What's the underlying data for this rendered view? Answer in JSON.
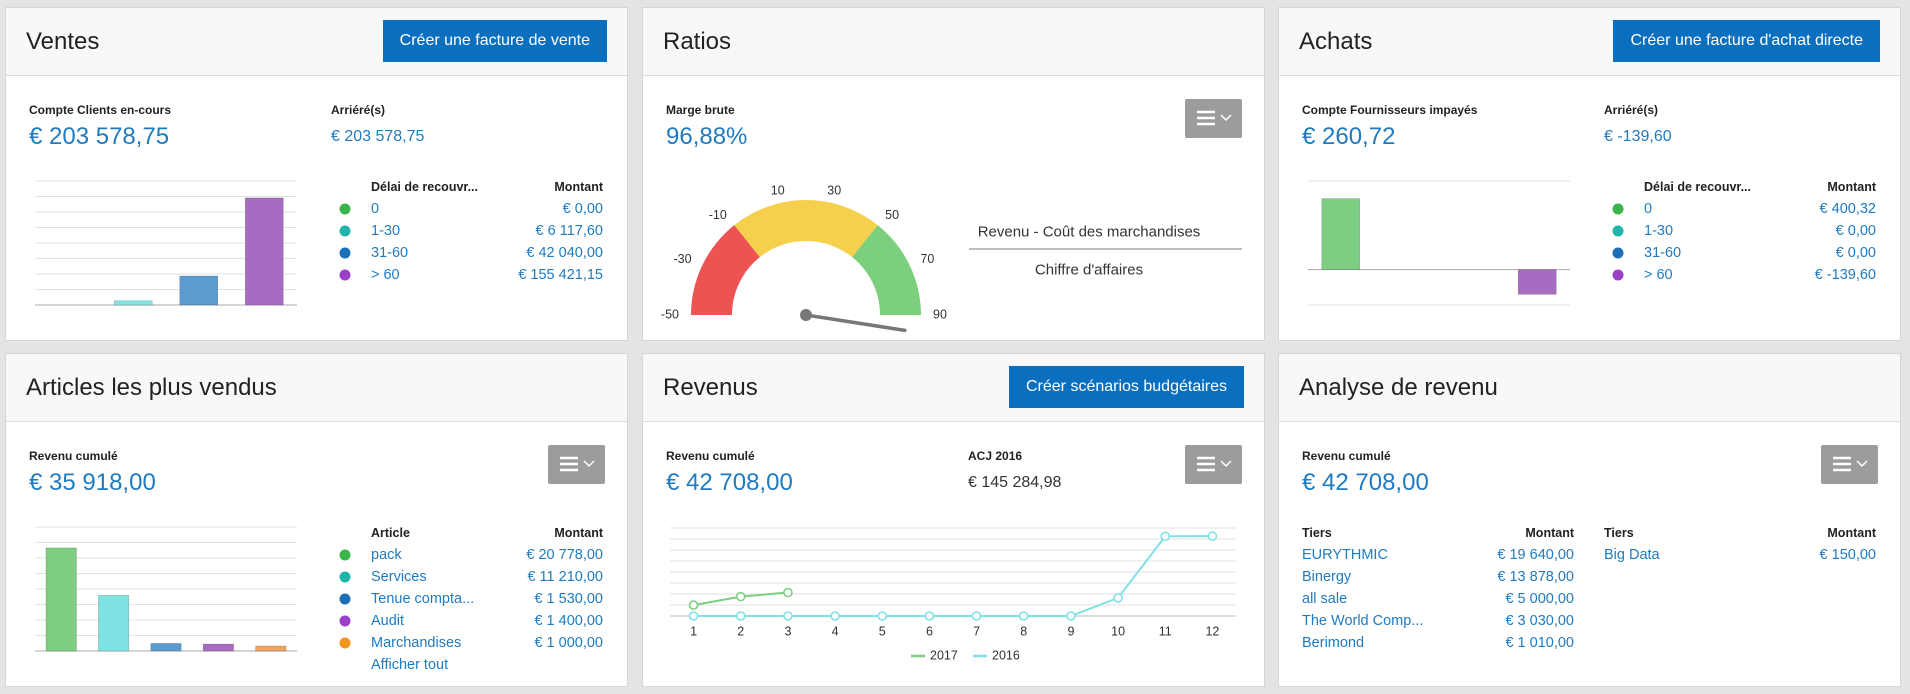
{
  "ventes": {
    "title": "Ventes",
    "button": "Créer une facture de vente",
    "kpis": [
      {
        "label": "Compte Clients en-cours",
        "value": "€ 203 578,75"
      },
      {
        "label": "Arriéré(s)",
        "value": "€ 203 578,75"
      }
    ],
    "table_headers": [
      "Délai de recouvr...",
      "Montant"
    ],
    "chart": {
      "type": "bar",
      "categories": [
        "0",
        "1-30",
        "31-60",
        "> 60"
      ],
      "values": [
        0,
        6117.6,
        42040,
        155421.15
      ],
      "value_labels": [
        "€ 0,00",
        "€ 6 117,60",
        "€ 42 040,00",
        "€ 155 421,15"
      ],
      "colors": [
        "#7dce82",
        "#80e3e3",
        "#5b9bd0",
        "#a66cc1"
      ],
      "legend_colors": [
        "#39b54a",
        "#1fb5ac",
        "#1b6fb7",
        "#9a40c9"
      ],
      "ylim": [
        0,
        180000
      ],
      "grid": true
    }
  },
  "ratios": {
    "title": "Ratios",
    "menu": true,
    "kpis": [
      {
        "label": "Marge brute",
        "value": "96,88%"
      }
    ],
    "chart": {
      "type": "gauge",
      "value": 96.88,
      "ylim": [
        -50,
        90
      ],
      "yticks": [
        -50,
        -30,
        -10,
        10,
        30,
        50,
        70,
        90
      ],
      "bands": [
        {
          "from": -50,
          "to": -10,
          "color": "#ee5353"
        },
        {
          "from": -10,
          "to": 50,
          "color": "#f6d04d"
        },
        {
          "from": 50,
          "to": 90,
          "color": "#7ccf7c"
        }
      ]
    },
    "formula": {
      "numerator": "Revenu - Coût des marchandises",
      "denominator": "Chiffre d'affaires"
    }
  },
  "achats": {
    "title": "Achats",
    "button": "Créer une facture d'achat directe",
    "kpis": [
      {
        "label": "Compte Fournisseurs impayés",
        "value": "€ 260,72"
      },
      {
        "label": "Arriéré(s)",
        "value": "€ -139,60"
      }
    ],
    "table_headers": [
      "Délai de recouvr...",
      "Montant"
    ],
    "chart": {
      "type": "bar",
      "categories": [
        "0",
        "1-30",
        "31-60",
        "> 60"
      ],
      "values": [
        400.32,
        0,
        0,
        -139.6
      ],
      "value_labels": [
        "€ 400,32",
        "€ 0,00",
        "€ 0,00",
        "€ -139,60"
      ],
      "colors": [
        "#7dce82",
        "#80e3e3",
        "#5b9bd0",
        "#a66cc1"
      ],
      "legend_colors": [
        "#39b54a",
        "#1fb5ac",
        "#1b6fb7",
        "#9a40c9"
      ],
      "ylim": [
        -200,
        500
      ],
      "grid": false
    }
  },
  "articles": {
    "title": "Articles les plus vendus",
    "menu": true,
    "kpis": [
      {
        "label": "Revenu cumulé",
        "value": "€ 35 918,00"
      }
    ],
    "table_headers": [
      "Article",
      "Montant"
    ],
    "more": "Afficher tout",
    "chart": {
      "type": "bar",
      "categories": [
        "pack",
        "Services",
        "Tenue compta...",
        "Audit",
        "Marchandises"
      ],
      "values": [
        20778,
        11210,
        1530,
        1400,
        1000
      ],
      "value_labels": [
        "€ 20 778,00",
        "€ 11 210,00",
        "€ 1 530,00",
        "€ 1 400,00",
        "€ 1 000,00"
      ],
      "colors": [
        "#7dce82",
        "#80e3e3",
        "#5b9bd0",
        "#a66cc1",
        "#f2a35e"
      ],
      "legend_colors": [
        "#39b54a",
        "#1fb5ac",
        "#1b6fb7",
        "#9a40c9",
        "#f0951e"
      ],
      "ylim": [
        0,
        25000
      ],
      "grid": true
    }
  },
  "revenus": {
    "title": "Revenus",
    "button": "Créer scénarios budgétaires",
    "menu": true,
    "kpis": [
      {
        "label": "Revenu cumulé",
        "value": "€ 42 708,00"
      },
      {
        "label": "ACJ 2016",
        "value": "€ 145 284,98"
      }
    ],
    "chart": {
      "type": "line",
      "x": [
        1,
        2,
        3,
        4,
        5,
        6,
        7,
        8,
        9,
        10,
        11,
        12
      ],
      "xticks": [
        1,
        2,
        3,
        4,
        5,
        6,
        7,
        8,
        9,
        10,
        11,
        12
      ],
      "xlim": [
        0.5,
        12.5
      ],
      "ylim": [
        0,
        160000
      ],
      "grid": true,
      "series": [
        {
          "name": "2017",
          "color": "#7dce82",
          "values": [
            19800,
            35200,
            42708,
            null,
            null,
            null,
            null,
            null,
            null,
            null,
            null,
            null
          ]
        },
        {
          "name": "2016",
          "color": "#7fe0e6",
          "values": [
            0,
            0,
            0,
            0,
            0,
            0,
            0,
            0,
            0,
            33000,
            145000,
            145284.98
          ]
        }
      ]
    }
  },
  "analyse": {
    "title": "Analyse de revenu",
    "menu": true,
    "kpis": [
      {
        "label": "Revenu cumulé",
        "value": "€ 42 708,00"
      }
    ],
    "tables": [
      {
        "headers": [
          "Tiers",
          "Montant"
        ],
        "rows": [
          [
            "EURYTHMIC",
            "€ 19 640,00"
          ],
          [
            "Binergy",
            "€ 13 878,00"
          ],
          [
            "all sale",
            "€ 5 000,00"
          ],
          [
            "The World Comp...",
            "€ 3 030,00"
          ],
          [
            "Berimond",
            "€ 1 010,00"
          ]
        ]
      },
      {
        "headers": [
          "Tiers",
          "Montant"
        ],
        "rows": [
          [
            "Big Data",
            "€ 150,00"
          ]
        ]
      }
    ]
  }
}
